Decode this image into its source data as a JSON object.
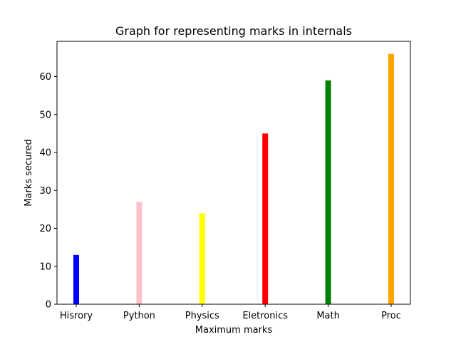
{
  "chart_data": {
    "type": "bar",
    "title": "Graph for representing marks in internals",
    "xlabel": "Maximum marks",
    "ylabel": "Marks secured",
    "categories": [
      "Hisrory",
      "Python",
      "Physics",
      "Eletronics",
      "Math",
      "Proc"
    ],
    "values": [
      13,
      27,
      24,
      45,
      59,
      66
    ],
    "colors": [
      "#0000ff",
      "#ffc0cb",
      "#ffff00",
      "#ff0000",
      "#008000",
      "#ffa500"
    ],
    "yticks": [
      0,
      10,
      20,
      30,
      40,
      50,
      60
    ],
    "ylim": [
      0,
      69.3
    ],
    "grid": false
  }
}
